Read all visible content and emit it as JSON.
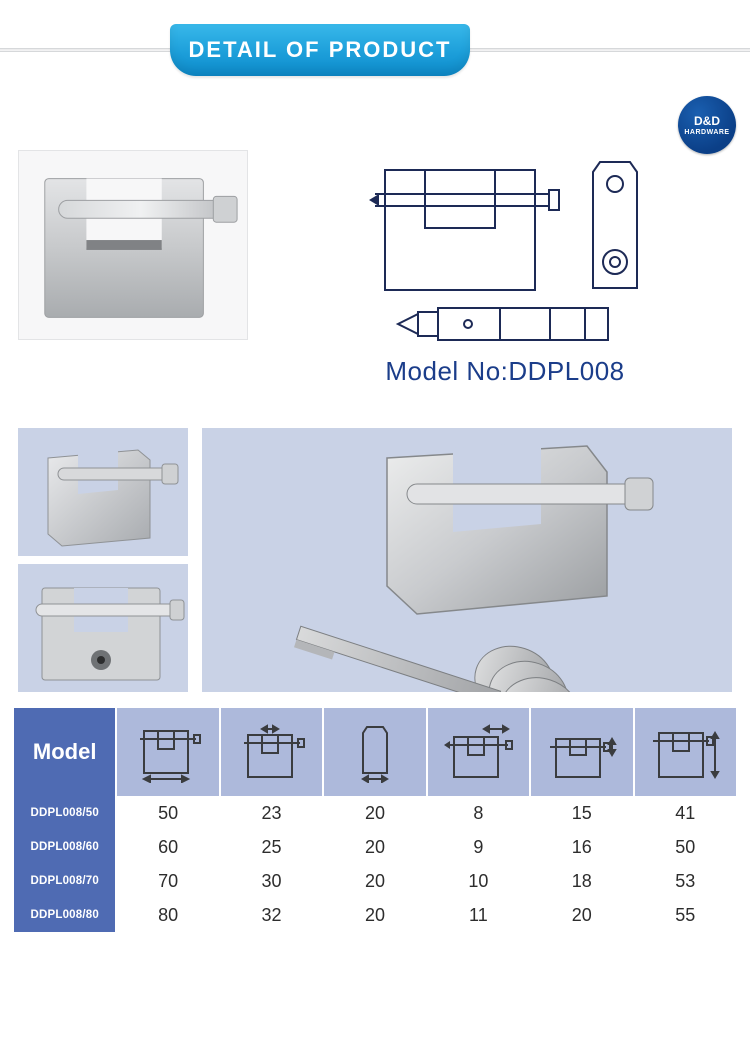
{
  "header": {
    "title": "DETAIL OF PRODUCT",
    "banner_gradient": [
      "#38b8ea",
      "#1d9fda",
      "#0d8bcb"
    ],
    "rule_color": "#d6d8da"
  },
  "logo": {
    "line1": "D&D",
    "line2": "HARDWARE",
    "background": "#0b3f87",
    "text_color": "#ffffff"
  },
  "model": {
    "label_prefix": "Model No:",
    "number": "DDPL008",
    "text_color": "#1b3d8a",
    "fontsize": 26
  },
  "diagrams": {
    "stroke_color": "#1d2a56",
    "stroke_width": 2,
    "front_view": true,
    "side_view": true,
    "shackle_view": true
  },
  "product_photo": {
    "material": "brushed-steel",
    "body_color": "#cfd1d3",
    "highlight_color": "#eceded",
    "shadow_color": "#9ea0a2"
  },
  "gallery": {
    "panel_bg": "#c9d2e6",
    "thumbs": [
      "angle-view",
      "front-keyhole-view"
    ],
    "large": "lock-with-keys"
  },
  "spec_table": {
    "header_bg": "#adb9db",
    "model_col_bg": "#4f6bb3",
    "model_header_label": "Model",
    "text_color": "#2d2d2d",
    "header_icons": [
      "width-outer",
      "shackle-gap",
      "side-thickness",
      "shackle-length",
      "shackle-height",
      "body-height"
    ],
    "columns_count": 7,
    "rows": [
      {
        "model": "DDPL008/50",
        "values": [
          50,
          23,
          20,
          8,
          15,
          41
        ]
      },
      {
        "model": "DDPL008/60",
        "values": [
          60,
          25,
          20,
          9,
          16,
          50
        ]
      },
      {
        "model": "DDPL008/70",
        "values": [
          70,
          30,
          20,
          10,
          18,
          53
        ]
      },
      {
        "model": "DDPL008/80",
        "values": [
          80,
          32,
          20,
          11,
          20,
          55
        ]
      }
    ]
  },
  "colors": {
    "page_bg": "#ffffff",
    "diagram_blue": "#1d2a56",
    "steel_light": "#d8d9db",
    "steel_mid": "#b8bbbe",
    "steel_dark": "#8f9295"
  }
}
